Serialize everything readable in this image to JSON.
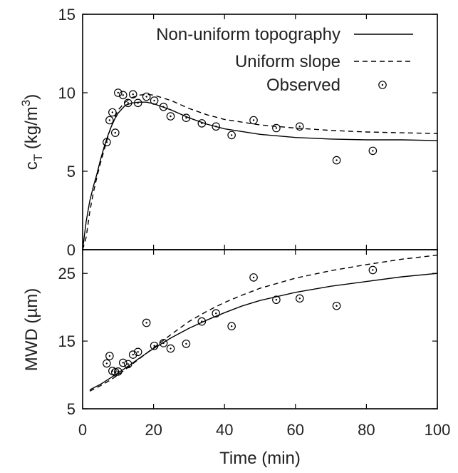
{
  "chart_data": {
    "type": "line",
    "xlabel": "Time (min)",
    "xlim": [
      0,
      100
    ],
    "xticks": [
      0,
      20,
      40,
      60,
      80,
      100
    ],
    "legend": {
      "placement": "top-right",
      "entries": [
        {
          "label": "Non-uniform topography",
          "style": "solid"
        },
        {
          "label": "Uniform slope",
          "style": "dashed"
        },
        {
          "label": "Observed",
          "style": "open-circle-with-dot"
        }
      ]
    },
    "panels": [
      {
        "id": "top",
        "ylabel": "c_T (kg/m^3)",
        "ylabel_parts": {
          "main": "c",
          "sub": "T",
          "unit": " (kg/m",
          "sup": "3",
          "close": ")"
        },
        "ylim": [
          0,
          15
        ],
        "yticks": [
          0,
          5,
          10,
          15
        ],
        "series": [
          {
            "name": "Non-uniform topography",
            "style": "solid",
            "x": [
              0,
              1,
              2,
              3,
              4,
              5,
              6,
              7,
              8,
              9,
              10,
              12,
              14,
              16,
              18,
              20,
              25,
              30,
              35,
              40,
              50,
              60,
              70,
              80,
              90,
              100
            ],
            "y": [
              0,
              1.8,
              3.1,
              4.0,
              4.8,
              5.7,
              6.5,
              7.2,
              7.8,
              8.3,
              8.7,
              9.2,
              9.35,
              9.4,
              9.4,
              9.3,
              8.9,
              8.4,
              8.0,
              7.7,
              7.35,
              7.15,
              7.05,
              7.0,
              7.0,
              6.95
            ]
          },
          {
            "name": "Uniform slope",
            "style": "dashed",
            "x": [
              0,
              1,
              2,
              3,
              4,
              5,
              6,
              7,
              8,
              9,
              10,
              12,
              14,
              16,
              18,
              20,
              25,
              30,
              35,
              40,
              50,
              60,
              70,
              80,
              90,
              100
            ],
            "y": [
              0,
              0.8,
              2.4,
              3.6,
              4.6,
              5.5,
              6.3,
              7.1,
              7.8,
              8.4,
              8.9,
              9.4,
              9.7,
              9.85,
              9.9,
              9.85,
              9.5,
              9.0,
              8.6,
              8.3,
              7.95,
              7.75,
              7.6,
              7.5,
              7.45,
              7.4
            ]
          }
        ],
        "observed": {
          "x": [
            6.8,
            7.6,
            8.4,
            9.2,
            10.0,
            11.4,
            12.8,
            14.2,
            15.6,
            18.0,
            20.2,
            22.8,
            24.8,
            29.2,
            33.6,
            37.6,
            42.0,
            48.2,
            54.6,
            61.2,
            71.6,
            81.8
          ],
          "y": [
            6.85,
            8.25,
            8.75,
            7.45,
            10.0,
            9.85,
            9.35,
            9.9,
            9.35,
            9.75,
            9.5,
            9.1,
            8.5,
            8.4,
            8.05,
            7.85,
            7.3,
            8.25,
            7.75,
            7.85,
            5.7,
            6.3
          ]
        }
      },
      {
        "id": "bottom",
        "ylabel": "MWD (µm)",
        "ylim": [
          5,
          28.5
        ],
        "yticks": [
          5,
          15,
          25
        ],
        "series": [
          {
            "name": "Non-uniform topography",
            "style": "solid",
            "x": [
              2,
              5,
              8,
              10,
              12,
              15,
              18,
              20,
              25,
              30,
              35,
              40,
              45,
              50,
              60,
              70,
              80,
              90,
              100
            ],
            "y": [
              7.8,
              8.6,
              9.6,
              10.3,
              11.0,
              12.1,
              13.2,
              13.9,
              15.5,
              16.9,
              18.1,
              19.2,
              20.2,
              21.0,
              22.2,
              23.1,
              23.8,
              24.5,
              25.0
            ]
          },
          {
            "name": "Uniform slope",
            "style": "dashed",
            "x": [
              2,
              5,
              8,
              10,
              12,
              15,
              18,
              20,
              25,
              30,
              35,
              40,
              45,
              50,
              60,
              70,
              80,
              90,
              100
            ],
            "y": [
              7.6,
              8.4,
              9.3,
              10.0,
              10.8,
              12.0,
              13.2,
              14.0,
              16.0,
              17.9,
              19.4,
              20.7,
              21.8,
              22.8,
              24.3,
              25.4,
              26.3,
              27.1,
              27.7
            ]
          }
        ],
        "observed": {
          "x": [
            6.8,
            7.6,
            8.4,
            9.2,
            10.0,
            11.4,
            12.8,
            14.2,
            15.6,
            18.0,
            20.2,
            22.8,
            24.8,
            29.2,
            33.6,
            37.6,
            42.0,
            48.2,
            54.6,
            61.2,
            71.6,
            81.8
          ],
          "y": [
            11.7,
            12.8,
            10.6,
            10.4,
            10.5,
            11.8,
            11.6,
            13.0,
            13.4,
            17.7,
            14.3,
            14.7,
            13.9,
            14.6,
            17.9,
            19.1,
            17.2,
            24.4,
            21.1,
            21.3,
            20.2,
            25.5
          ]
        }
      }
    ]
  }
}
